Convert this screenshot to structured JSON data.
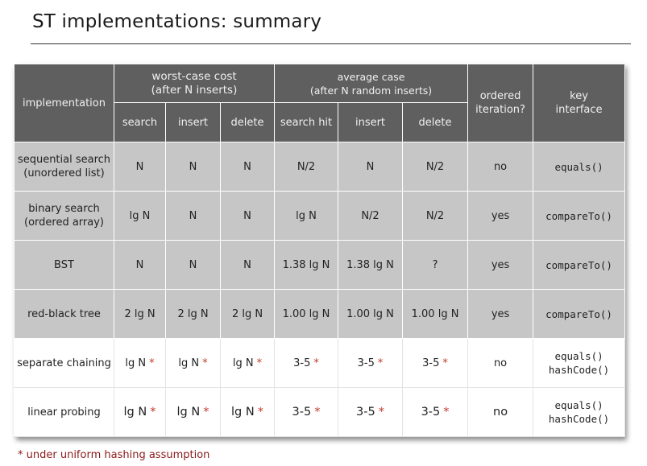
{
  "title": "ST implementations:  summary",
  "header": {
    "implementation": "implementation",
    "worst_case": {
      "line1": "worst-case cost",
      "line2": "(after N inserts)"
    },
    "average_case": {
      "line1": "average case",
      "line2": "(after N random inserts)"
    },
    "ordered": {
      "line1": "ordered",
      "line2": "iteration?"
    },
    "key": {
      "line1": "key",
      "line2": "interface"
    },
    "sub": [
      "search",
      "insert",
      "delete",
      "search hit",
      "insert",
      "delete"
    ]
  },
  "rows": [
    {
      "name1": "sequential search",
      "name2": "(unordered list)",
      "cells": [
        "N",
        "N",
        "N",
        "N/2",
        "N",
        "N/2"
      ],
      "ordered": "no",
      "key1": "equals()",
      "key2": ""
    },
    {
      "name1": "binary search",
      "name2": "(ordered array)",
      "cells": [
        "lg N",
        "N",
        "N",
        "lg N",
        "N/2",
        "N/2"
      ],
      "ordered": "yes",
      "key1": "compareTo()",
      "key2": ""
    },
    {
      "name1": "BST",
      "name2": "",
      "cells": [
        "N",
        "N",
        "N",
        "1.38 lg N",
        "1.38 lg N",
        "?"
      ],
      "ordered": "yes",
      "key1": "compareTo()",
      "key2": ""
    },
    {
      "name1": "red-black tree",
      "name2": "",
      "cells": [
        "2 lg N",
        "2 lg N",
        "2 lg N",
        "1.00 lg N",
        "1.00 lg N",
        "1.00 lg N"
      ],
      "ordered": "yes",
      "key1": "compareTo()",
      "key2": ""
    },
    {
      "name1": "separate chaining",
      "name2": "",
      "cells": [
        "lg N",
        "lg N",
        "lg N",
        "3-5",
        "3-5",
        "3-5"
      ],
      "ordered": "no",
      "key1": "equals()",
      "key2": "hashCode()"
    },
    {
      "name1": "linear probing",
      "name2": "",
      "cells": [
        "lg N",
        "lg N",
        "lg N",
        "3-5",
        "3-5",
        "3-5"
      ],
      "ordered": "no",
      "key1": "equals()",
      "key2": "hashCode()"
    }
  ],
  "star": "*",
  "footnote": "*  under uniform hashing assumption",
  "colors": {
    "header_bg": "#5f5f5f",
    "gray_row": "#c6c6c6",
    "star": "#c0392b",
    "footnote": "#8b1a1a"
  }
}
